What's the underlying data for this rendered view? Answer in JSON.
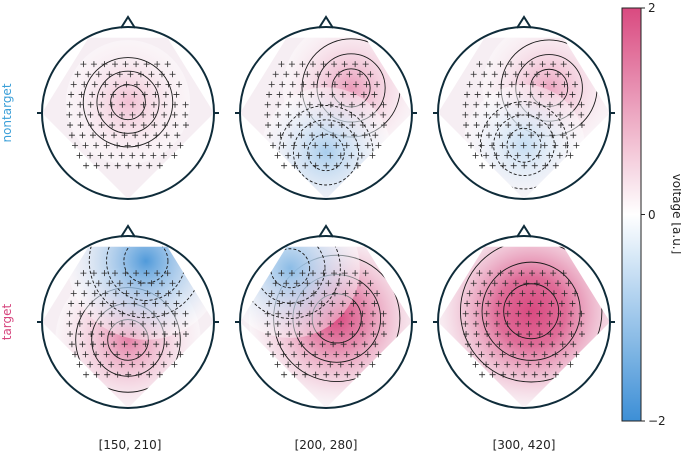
{
  "chart_data": {
    "type": "heatmap",
    "subtype": "topographic-head-maps",
    "rows": [
      {
        "label": "nontarget",
        "color": "#3b9fd8"
      },
      {
        "label": "target",
        "color": "#d6457e"
      }
    ],
    "columns": [
      "[150, 210]",
      "[200, 280]",
      "[300, 420]"
    ],
    "panels": [
      {
        "row": 0,
        "col": 0,
        "pos": [
          0.35,
          0.0,
          0.15
        ],
        "neg": [
          0.0,
          0.0,
          0.15
        ]
      },
      {
        "row": 0,
        "col": 1,
        "pos": [
          0.55,
          0.35,
          0.35
        ],
        "neg": [
          0.45,
          0.0,
          -0.55
        ]
      },
      {
        "row": 0,
        "col": 2,
        "pos": [
          0.5,
          0.35,
          0.35
        ],
        "neg": [
          0.3,
          0.0,
          -0.45
        ]
      },
      {
        "row": 1,
        "col": 0,
        "pos": [
          0.7,
          0.0,
          -0.25
        ],
        "neg": [
          0.9,
          0.25,
          0.85
        ]
      },
      {
        "row": 1,
        "col": 1,
        "pos": [
          1.2,
          0.15,
          0.05
        ],
        "neg": [
          0.6,
          -0.5,
          0.75
        ]
      },
      {
        "row": 1,
        "col": 2,
        "pos": [
          1.55,
          0.1,
          0.15
        ],
        "neg": [
          0.0,
          0.0,
          0.0
        ]
      }
    ],
    "colorbar": {
      "label": "voltage [a.u.]",
      "min": -2,
      "max": 2,
      "ticks": [
        "2",
        "0",
        "−2"
      ],
      "colors": {
        "neg": "#3d8fd6",
        "zero": "#ffffff",
        "pos": "#d94a80"
      }
    }
  }
}
